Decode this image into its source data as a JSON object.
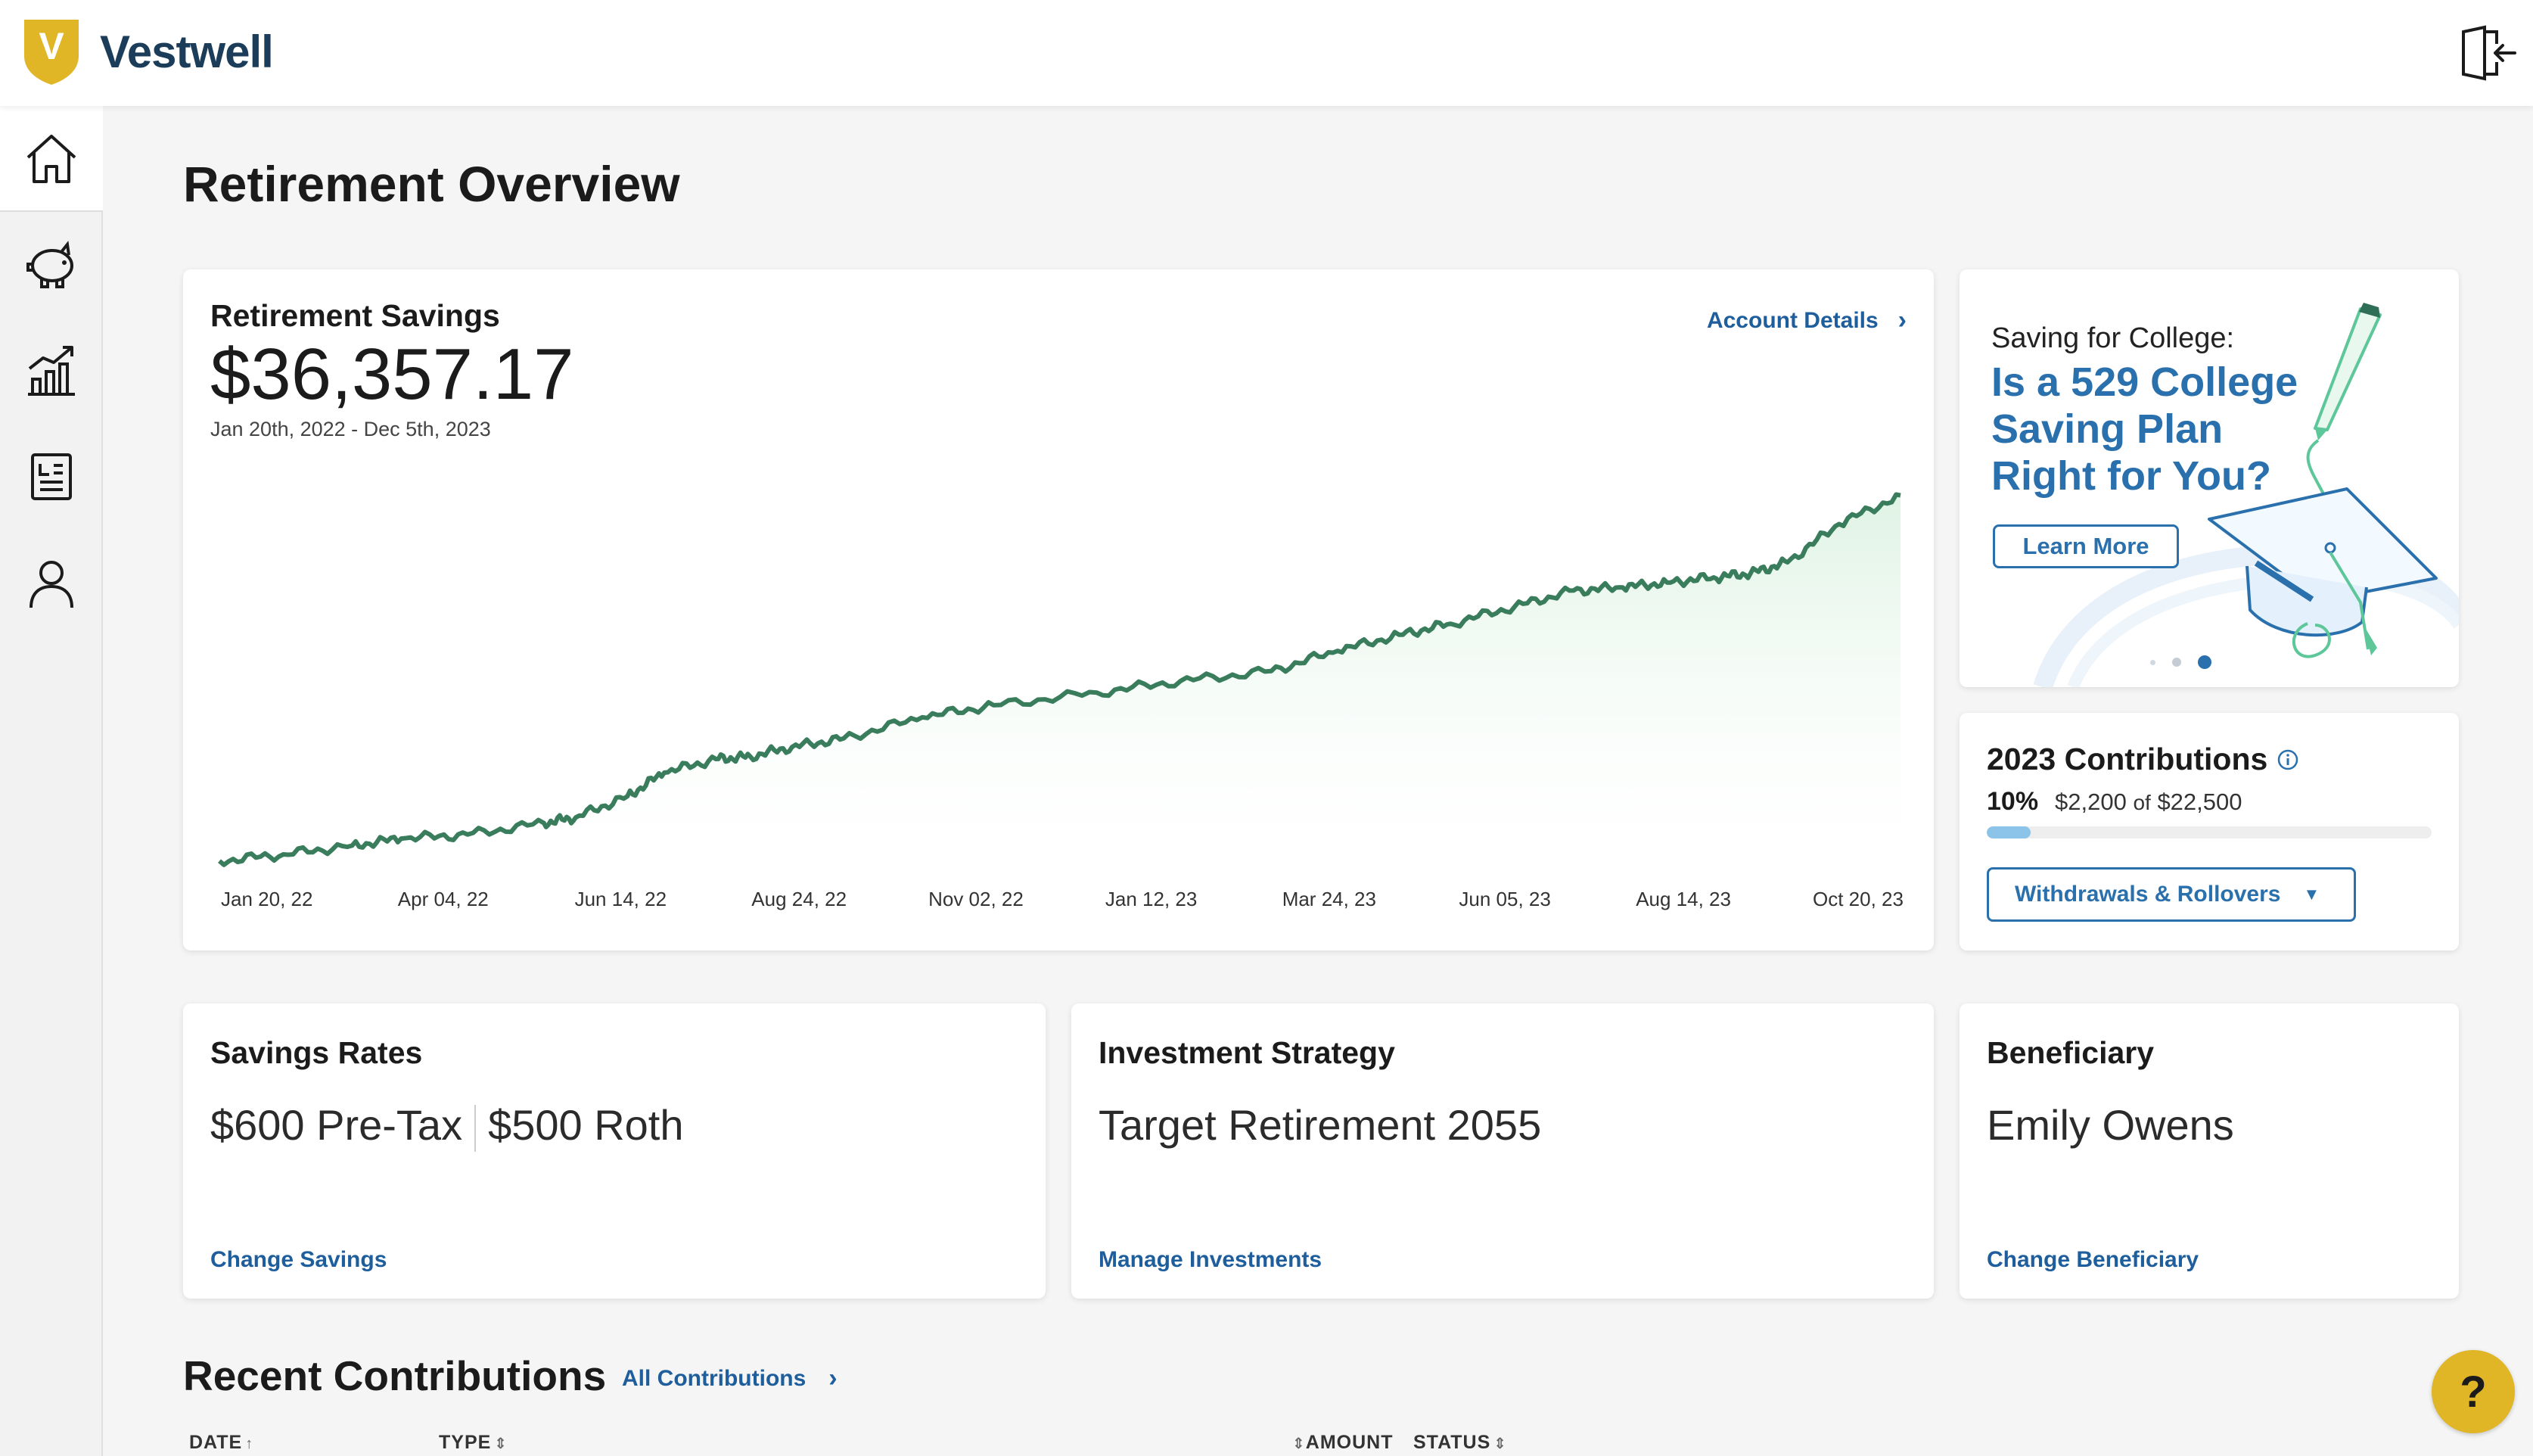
{
  "brand": {
    "name": "Vestwell",
    "logo_letter": "V",
    "accent": "#e0b526",
    "link_color": "#1f5e9c"
  },
  "nav": {
    "items": [
      {
        "icon": "home-icon",
        "active": true
      },
      {
        "icon": "piggy-bank-icon"
      },
      {
        "icon": "growth-chart-icon"
      },
      {
        "icon": "document-icon"
      },
      {
        "icon": "user-icon"
      }
    ],
    "logout_icon": "logout-icon"
  },
  "page": {
    "title": "Retirement Overview"
  },
  "savings": {
    "title": "Retirement Savings",
    "total": "$36,357.17",
    "range": "Jan 20th, 2022 - Dec 5th, 2023",
    "account_link": "Account Details"
  },
  "chart_data": {
    "type": "area",
    "title": "Retirement Savings",
    "x_ticks": [
      "Jan 20, 22",
      "Apr 04, 22",
      "Jun 14, 22",
      "Aug 24, 22",
      "Nov 02, 22",
      "Jan 12, 23",
      "Mar 24, 23",
      "Jun 05, 23",
      "Aug 14, 23",
      "Oct 20, 23"
    ],
    "x": [
      "2022-01-20",
      "2022-02-15",
      "2022-03-15",
      "2022-04-04",
      "2022-05-01",
      "2022-06-01",
      "2022-06-14",
      "2022-07-05",
      "2022-07-20",
      "2022-08-10",
      "2022-08-24",
      "2022-09-10",
      "2022-10-01",
      "2022-11-02",
      "2022-12-01",
      "2023-01-12",
      "2023-02-15",
      "2023-03-24",
      "2023-04-20",
      "2023-05-15",
      "2023-06-05",
      "2023-07-01",
      "2023-07-25",
      "2023-08-14",
      "2023-09-01",
      "2023-09-20",
      "2023-10-05",
      "2023-10-20",
      "2023-11-10",
      "2023-12-05"
    ],
    "values": [
      20,
      680,
      1550,
      2250,
      2650,
      3800,
      4350,
      6450,
      8800,
      10150,
      10400,
      11350,
      12200,
      14300,
      15500,
      16750,
      17900,
      18900,
      20900,
      22500,
      23600,
      25300,
      26900,
      27200,
      27700,
      28200,
      28600,
      29700,
      33500,
      36357
    ],
    "ylim": [
      0,
      37000
    ],
    "series_color": "#3a7d5c",
    "fill_color": "#e6f6ea",
    "grid": false,
    "legend": "none"
  },
  "promo": {
    "kicker": "Saving for College:",
    "headline": "Is a 529 College Saving Plan Right for You?",
    "button": "Learn More",
    "slides": 3,
    "active_slide": 3
  },
  "contributions": {
    "title": "2023 Contributions",
    "percent": "10%",
    "amount_text": "$2,200",
    "of_text": "of",
    "limit_text": "$22,500",
    "progress": 0.098,
    "button": "Withdrawals & Rollovers"
  },
  "rates": {
    "title": "Savings Rates",
    "pre_tax": "$600 Pre-Tax",
    "roth": "$500 Roth",
    "link": "Change Savings"
  },
  "strategy": {
    "title": "Investment Strategy",
    "value": "Target Retirement 2055",
    "link": "Manage Investments"
  },
  "beneficiary": {
    "title": "Beneficiary",
    "value": "Emily Owens",
    "link": "Change Beneficiary"
  },
  "recent": {
    "title": "Recent Contributions",
    "link": "All Contributions",
    "columns": {
      "date": "DATE",
      "type": "TYPE",
      "amount": "AMOUNT",
      "status": "STATUS"
    }
  },
  "help": {
    "label": "?"
  }
}
